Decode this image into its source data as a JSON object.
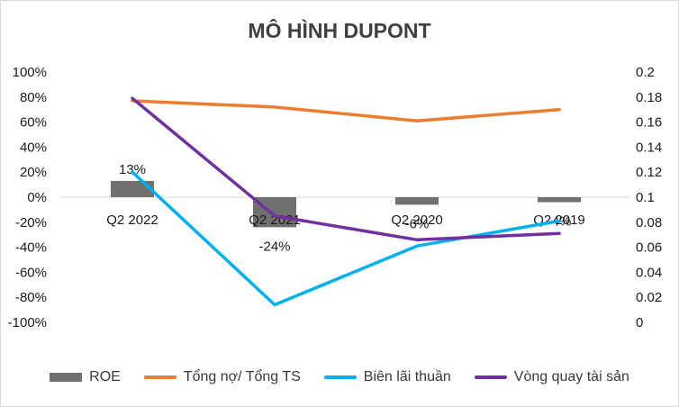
{
  "chart_data": {
    "type": "bar+line",
    "title": "MÔ HÌNH DUPONT",
    "categories": [
      "Q2 2022",
      "Q2 2021",
      "Q2 2020",
      "Q2 2019"
    ],
    "y_left": {
      "ticks": [
        "100%",
        "80%",
        "60%",
        "40%",
        "20%",
        "0%",
        "-20%",
        "-40%",
        "-60%",
        "-80%",
        "-100%"
      ],
      "min": -1.0,
      "max": 1.0
    },
    "y_right": {
      "ticks": [
        "0.2",
        "0.18",
        "0.16",
        "0.14",
        "0.12",
        "0.1",
        "0.08",
        "0.06",
        "0.04",
        "0.02",
        "0"
      ],
      "min": 0,
      "max": 0.2
    },
    "grid": true,
    "legend_position": "bottom",
    "series": [
      {
        "name": "ROE",
        "kind": "bar",
        "axis": "left",
        "color": "#707070",
        "values": [
          0.13,
          -0.24,
          -0.06,
          -0.04
        ],
        "labels": [
          "13%",
          "-24%",
          "-6%",
          "-4%"
        ]
      },
      {
        "name": "Tổng nợ/ Tổng TS",
        "kind": "line",
        "axis": "left",
        "color": "#ED7D31",
        "values": [
          0.77,
          0.72,
          0.61,
          0.7
        ]
      },
      {
        "name": "Biên lãi thuần",
        "kind": "line",
        "axis": "left",
        "color": "#00B0F0",
        "values": [
          0.2,
          -0.86,
          -0.39,
          -0.19
        ]
      },
      {
        "name": "Vòng quay tài sản",
        "kind": "line",
        "axis": "right",
        "color": "#7030A0",
        "values": [
          0.179,
          0.085,
          0.066,
          0.071
        ]
      }
    ]
  }
}
